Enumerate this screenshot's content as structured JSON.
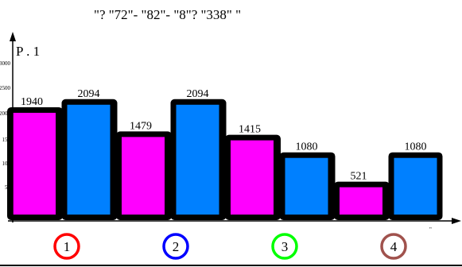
{
  "title": "\"? \"72\"- \"82\"- \"8\"? \"338\"      \"",
  "ylabel": "P .     1",
  "x_end_label": "\"",
  "colors": {
    "pink": "#ff00ff",
    "blue": "#0080ff",
    "outline": "#000000"
  },
  "chart_data": {
    "type": "bar",
    "title": "\"? \"72\"- \"82\"- \"8\"? \"338\"      \"",
    "ylabel": "P .     1",
    "xlabel": "",
    "ylim": [
      0,
      3000
    ],
    "y_ticks": [
      50,
      100,
      150,
      2000,
      2500,
      3000
    ],
    "categories": [
      "1",
      "2",
      "3",
      "4"
    ],
    "category_circle_colors": [
      "#ff0000",
      "#0000ff",
      "#00ff00",
      "#a0524d"
    ],
    "series": [
      {
        "color": "#ff00ff",
        "values": [
          1940,
          1479,
          1415,
          521
        ]
      },
      {
        "color": "#0080ff",
        "values": [
          2094,
          2094,
          1080,
          1080
        ]
      }
    ]
  }
}
